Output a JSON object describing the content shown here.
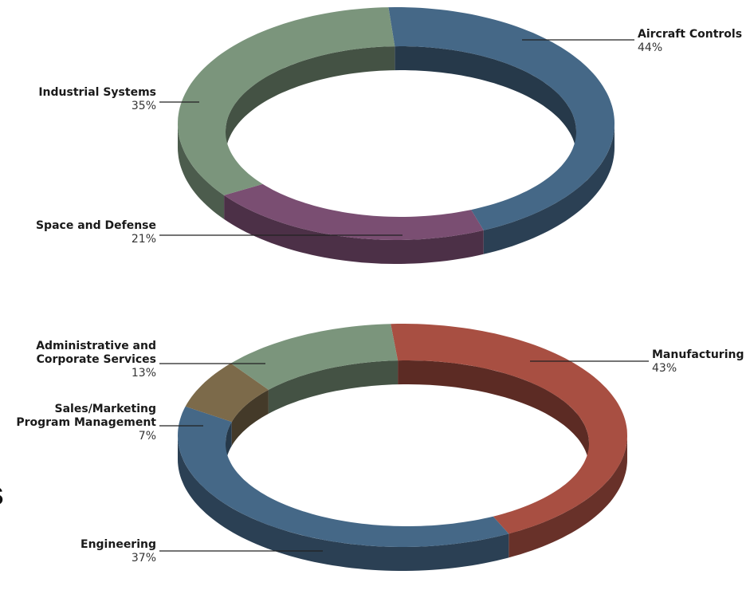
{
  "partial_text": "ns",
  "chart_data": [
    {
      "type": "pie",
      "style": "3d-ring",
      "slices": [
        {
          "name": "Aircraft Controls",
          "value": 44,
          "label": "44%",
          "color": "#456887"
        },
        {
          "name": "Space and Defense",
          "value": 21,
          "label": "21%",
          "color": "#7a4e72"
        },
        {
          "name": "Industrial Systems",
          "value": 35,
          "label": "35%",
          "color": "#7b957c"
        }
      ]
    },
    {
      "type": "pie",
      "style": "3d-ring",
      "slices": [
        {
          "name": "Manufacturing",
          "value": 43,
          "label": "43%",
          "color": "#a84f42"
        },
        {
          "name": "Engineering",
          "value": 37,
          "label": "37%",
          "color": "#456887"
        },
        {
          "name": "Sales/Marketing Program Management",
          "lines": [
            "Sales/Marketing",
            "Program Management"
          ],
          "value": 7,
          "label": "7%",
          "color": "#7c6a4a"
        },
        {
          "name": "Administrative and Corporate Services",
          "lines": [
            "Administrative and",
            "Corporate Services"
          ],
          "value": 13,
          "label": "13%",
          "color": "#7b957c"
        }
      ]
    }
  ]
}
